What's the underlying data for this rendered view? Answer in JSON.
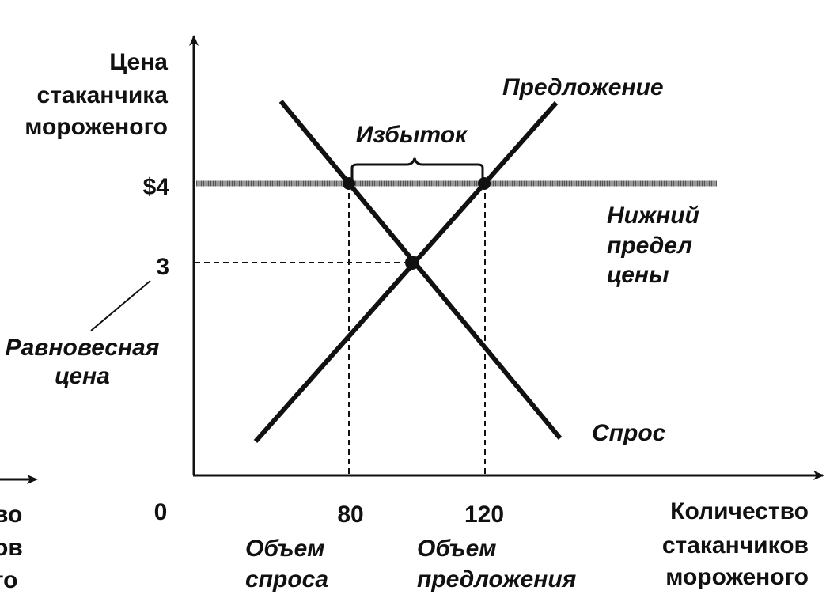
{
  "y_axis": {
    "label": [
      "Цена",
      "стаканчика",
      "мороженого"
    ],
    "ticks": [
      "$4",
      "3"
    ]
  },
  "x_axis": {
    "label": [
      "Количество",
      "стаканчиков",
      "мороженого"
    ],
    "ticks": [
      "0",
      "80",
      "120"
    ]
  },
  "curves": {
    "supply": "Предложение",
    "demand": "Спрос"
  },
  "price_floor": [
    "Нижний",
    "предел",
    "цены"
  ],
  "surplus": "Избыток",
  "equilibrium": [
    "Равновесная",
    "цена"
  ],
  "quantity_demanded": [
    "Объем",
    "спроса"
  ],
  "quantity_supplied": [
    "Объем",
    "предложения"
  ],
  "left_fragment": [
    "во",
    "ов",
    "го"
  ]
}
